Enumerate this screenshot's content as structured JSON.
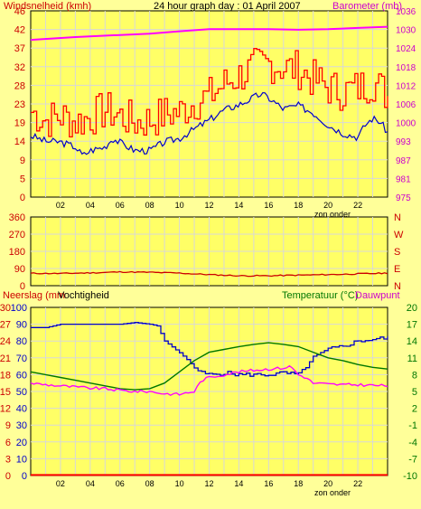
{
  "title": "24 hour graph day : 01 April 2007",
  "colors": {
    "background": "#ffff99",
    "plot_bg": "#ffff77",
    "wind": "#ff0000",
    "gust": "#0000cc",
    "baro": "#ff00ff",
    "winddir": "#cc0000",
    "rain": "#ff0000",
    "humidity": "#0000cc",
    "temp": "#007700",
    "dew": "#ff00ff",
    "red_text": "#cc0000",
    "magenta_text": "#cc00cc",
    "green_text": "#007700",
    "black_text": "#000000"
  },
  "chart_data": [
    {
      "type": "line",
      "title": "24 hour graph day : 01 April 2007",
      "left_label": "Windsnelheid (kmh)",
      "right_label": "Barometer (mb)",
      "xlabel": "zon onder",
      "x_ticks": [
        "02",
        "04",
        "06",
        "08",
        "10",
        "12",
        "14",
        "16",
        "18",
        "20",
        "22"
      ],
      "left_ticks": [
        "0",
        "5",
        "9",
        "14",
        "19",
        "23",
        "28",
        "32",
        "37",
        "42",
        "46"
      ],
      "right_ticks": [
        "975",
        "981",
        "987",
        "993",
        "1000",
        "1006",
        "1012",
        "1018",
        "1024",
        "1030",
        "1036"
      ],
      "ylim_left": [
        0,
        46
      ],
      "ylim_right": [
        975,
        1036
      ],
      "series": [
        {
          "axis": "right",
          "points": [
            [
              0,
              1026.5
            ],
            [
              3,
              1027.4
            ],
            [
              6,
              1028.1
            ],
            [
              8,
              1028.5
            ],
            [
              10,
              1029.3
            ],
            [
              12,
              1030
            ],
            [
              14,
              1030
            ],
            [
              16,
              1030
            ],
            [
              18,
              1029.8
            ],
            [
              20,
              1030
            ],
            [
              22,
              1030.4
            ],
            [
              24,
              1030.8
            ]
          ]
        },
        {
          "axis": "left",
          "points": [
            [
              0,
              15.2
            ],
            [
              1,
              13.8
            ],
            [
              2,
              13.6
            ],
            [
              3,
              12.4
            ],
            [
              3.5,
              10.2
            ],
            [
              4,
              11.5
            ],
            [
              5,
              12.4
            ],
            [
              5.5,
              14.5
            ],
            [
              6,
              13.5
            ],
            [
              7,
              11.5
            ],
            [
              8,
              11.5
            ],
            [
              9,
              13.6
            ],
            [
              10,
              14.5
            ],
            [
              11,
              16.8
            ],
            [
              12,
              19
            ],
            [
              13,
              21.5
            ],
            [
              14,
              22.8
            ],
            [
              15,
              24.6
            ],
            [
              15.5,
              25.5
            ],
            [
              16,
              24.5
            ],
            [
              17,
              21.8
            ],
            [
              18,
              22.6
            ],
            [
              19,
              20.8
            ],
            [
              20,
              17.8
            ],
            [
              21,
              15.8
            ],
            [
              22,
              14.8
            ],
            [
              22.5,
              17.8
            ],
            [
              23,
              19.5
            ],
            [
              23.5,
              18.6
            ],
            [
              24,
              16
            ]
          ]
        },
        {
          "axis": "left",
          "points": [
            [
              0,
              21
            ],
            [
              1,
              19
            ],
            [
              2,
              20
            ],
            [
              3,
              18.5
            ],
            [
              4,
              19.8
            ],
            [
              5,
              21.5
            ],
            [
              6,
              20
            ],
            [
              7,
              18.5
            ],
            [
              8,
              19
            ],
            [
              9,
              20.5
            ],
            [
              10,
              21
            ],
            [
              11,
              23.5
            ],
            [
              12,
              25
            ],
            [
              13,
              28
            ],
            [
              14,
              30
            ],
            [
              15,
              32
            ],
            [
              16,
              33
            ],
            [
              17,
              32
            ],
            [
              18,
              31.5
            ],
            [
              19,
              29
            ],
            [
              20,
              27
            ],
            [
              21,
              26
            ],
            [
              22,
              27
            ],
            [
              23,
              28.5
            ],
            [
              24,
              25
            ]
          ]
        }
      ]
    },
    {
      "type": "line",
      "right_label": "N W S E N",
      "xlabel": "",
      "left_ticks": [
        "360",
        "270",
        "180",
        "90",
        "0"
      ],
      "right_ticks": [
        "N",
        "W",
        "S",
        "E",
        "N"
      ],
      "ylim": [
        0,
        360
      ],
      "series": [
        {
          "points": [
            [
              0,
              65
            ],
            [
              2,
              64
            ],
            [
              4,
              67
            ],
            [
              6,
              72
            ],
            [
              8,
              70
            ],
            [
              10,
              66
            ],
            [
              12,
              58
            ],
            [
              14,
              52
            ],
            [
              16,
              52
            ],
            [
              18,
              55
            ],
            [
              20,
              58
            ],
            [
              22,
              62
            ],
            [
              24,
              66
            ]
          ]
        }
      ]
    },
    {
      "type": "line",
      "left_label_1": "Neerslag (mm",
      "left_label_2": "Vochtigheid",
      "right_label_1": "Temperatuur (°C)",
      "right_label_2": "Dauwpunt",
      "xlabel": "zon onder",
      "x_ticks": [
        "02",
        "04",
        "06",
        "08",
        "10",
        "12",
        "14",
        "16",
        "18",
        "20",
        "22"
      ],
      "rain_ticks": [
        "0",
        "3",
        "6",
        "9",
        "12",
        "15",
        "18",
        "21",
        "24",
        "27",
        "30"
      ],
      "humidity_ticks": [
        "0",
        "10",
        "20",
        "30",
        "40",
        "50",
        "60",
        "70",
        "80",
        "90",
        "100"
      ],
      "temp_ticks": [
        "-10",
        "-7",
        "-4",
        "-1",
        "2",
        "5",
        "8",
        "11",
        "14",
        "17",
        "20"
      ],
      "ylim_rain": [
        0,
        30
      ],
      "ylim_humidity": [
        0,
        100
      ],
      "ylim_temp": [
        -10,
        20
      ],
      "series": [
        {
          "axis": "humidity",
          "points": [
            [
              0,
              88
            ],
            [
              1,
              88
            ],
            [
              2,
              90
            ],
            [
              4,
              90
            ],
            [
              6,
              90
            ],
            [
              7,
              91
            ],
            [
              8,
              90
            ],
            [
              8.5,
              89
            ],
            [
              9,
              80
            ],
            [
              10,
              73
            ],
            [
              10.5,
              69
            ],
            [
              11,
              64
            ],
            [
              11.5,
              61
            ],
            [
              12,
              60
            ],
            [
              13,
              61
            ],
            [
              14,
              60
            ],
            [
              15,
              60
            ],
            [
              16,
              60
            ],
            [
              17,
              61
            ],
            [
              18,
              60
            ],
            [
              18.5,
              65
            ],
            [
              19,
              70
            ],
            [
              20,
              75
            ],
            [
              21,
              77
            ],
            [
              22,
              80
            ],
            [
              23,
              81
            ],
            [
              24,
              82
            ]
          ]
        },
        {
          "axis": "temp",
          "points": [
            [
              0,
              8.5
            ],
            [
              1,
              8
            ],
            [
              2,
              7.5
            ],
            [
              3,
              7
            ],
            [
              4,
              6.5
            ],
            [
              5,
              6
            ],
            [
              6,
              5.5
            ],
            [
              7,
              5.3
            ],
            [
              8,
              5.5
            ],
            [
              9,
              6.5
            ],
            [
              10,
              8.5
            ],
            [
              11,
              10.5
            ],
            [
              12,
              12
            ],
            [
              13,
              12.5
            ],
            [
              14,
              13
            ],
            [
              15,
              13.4
            ],
            [
              16,
              13.7
            ],
            [
              17,
              13.4
            ],
            [
              18,
              13
            ],
            [
              19,
              12
            ],
            [
              20,
              11
            ],
            [
              21,
              10.5
            ],
            [
              22,
              9.8
            ],
            [
              23,
              9.3
            ],
            [
              24,
              9
            ]
          ]
        },
        {
          "axis": "temp",
          "points": [
            [
              0,
              6.5
            ],
            [
              1,
              6.2
            ],
            [
              2,
              6
            ],
            [
              3,
              5.8
            ],
            [
              4,
              5.6
            ],
            [
              5,
              5.5
            ],
            [
              6,
              5.2
            ],
            [
              7,
              5
            ],
            [
              8,
              5
            ],
            [
              9,
              4.6
            ],
            [
              10,
              4.5
            ],
            [
              11,
              5
            ],
            [
              11.5,
              7
            ],
            [
              12,
              7.5
            ],
            [
              13,
              8
            ],
            [
              14,
              8.5
            ],
            [
              15,
              8.8
            ],
            [
              16,
              9
            ],
            [
              17,
              9.2
            ],
            [
              17.5,
              9.5
            ],
            [
              18,
              8
            ],
            [
              18.5,
              7.5
            ],
            [
              19,
              6.5
            ],
            [
              20,
              6.3
            ],
            [
              21,
              6.2
            ],
            [
              22,
              6.2
            ],
            [
              23,
              6.1
            ],
            [
              24,
              6
            ]
          ]
        },
        {
          "axis": "rain",
          "points": [
            [
              0,
              0.1
            ],
            [
              24,
              0.1
            ]
          ]
        }
      ]
    }
  ]
}
